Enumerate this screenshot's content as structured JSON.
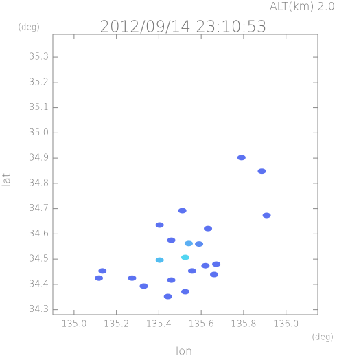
{
  "chart_data": {
    "type": "scatter",
    "title": "2012/09/14 23:10:53",
    "altitude_label": "ALT(km) 2.0",
    "y_unit": "(deg)",
    "x_unit": "(deg)",
    "x_label": "lon",
    "y_label": "lat",
    "xlim": [
      134.9,
      136.15
    ],
    "ylim": [
      34.28,
      35.39
    ],
    "xticks": [
      {
        "value": 135.0,
        "label": "135.0"
      },
      135.2,
      135.4,
      135.6,
      135.8,
      {
        "value": 136.0,
        "label": "136.0"
      }
    ],
    "yticks": [
      34.3,
      34.4,
      34.5,
      34.6,
      34.7,
      34.8,
      34.9,
      {
        "value": 35.0,
        "label": "35.0"
      },
      35.1,
      35.2,
      35.3
    ],
    "x": [
      135.117,
      135.134,
      135.329,
      135.404,
      135.541,
      135.525,
      135.59,
      135.557,
      135.459,
      135.525,
      135.443,
      135.661,
      135.62,
      135.79,
      135.886,
      135.909,
      135.404,
      135.511,
      135.632,
      135.459,
      135.274,
      135.671
    ],
    "values": [
      34.425,
      34.453,
      34.393,
      34.496,
      34.562,
      34.507,
      34.56,
      34.453,
      34.417,
      34.371,
      34.352,
      34.439,
      34.474,
      34.902,
      34.848,
      34.673,
      34.635,
      34.692,
      34.621,
      34.575,
      34.425,
      34.48
    ],
    "colors": [
      "#4a63f0",
      "#4a63f0",
      "#4a63f0",
      "#3fb6f0",
      "#49a6f2",
      "#3fd0f0",
      "#4a80f0",
      "#4a63f0",
      "#4a63f0",
      "#4a63f0",
      "#4a63f0",
      "#4a63f0",
      "#4a63f0",
      "#4a63f0",
      "#4a63f0",
      "#4a63f0",
      "#4a63f0",
      "#4a63f0",
      "#4a63f0",
      "#4a63f0",
      "#4a63f0",
      "#4a63f0"
    ]
  }
}
